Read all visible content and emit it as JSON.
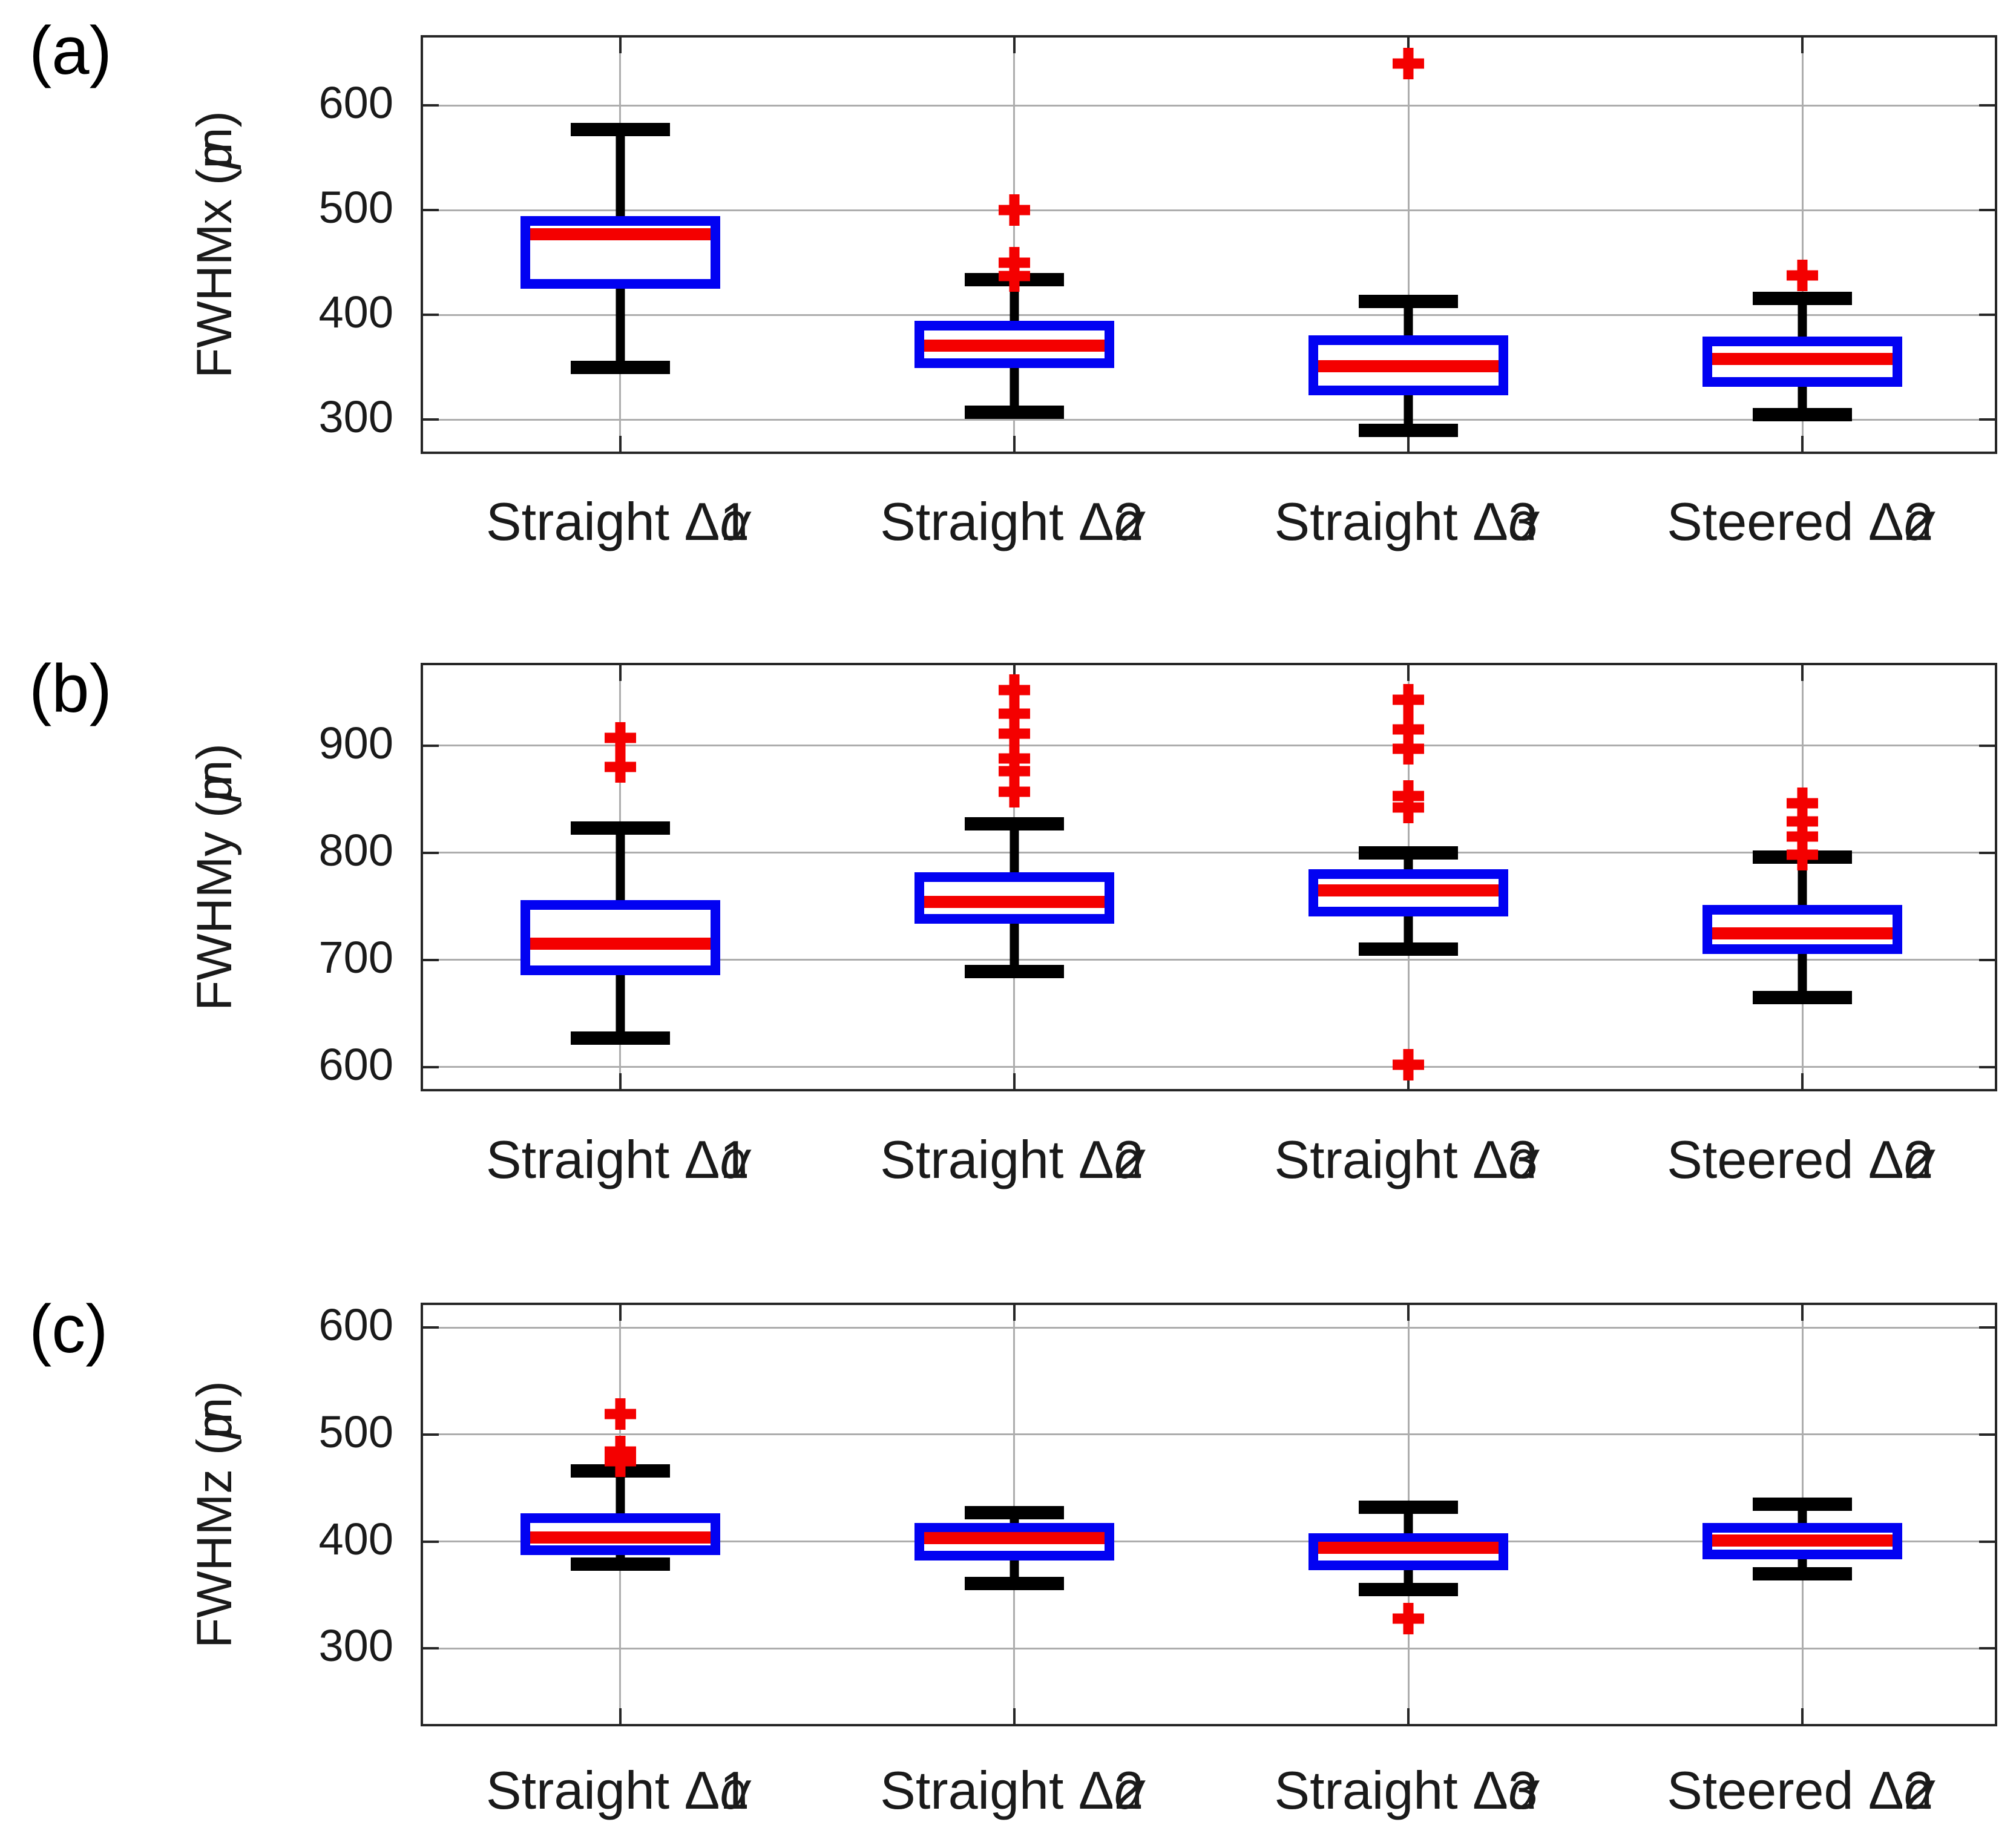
{
  "colors": {
    "box_edge": "#0202F2",
    "median": "#F40000",
    "whisker": "#000000",
    "outlier_marker": "#F40000",
    "gridline": "#ADADAD",
    "axis_border": "#262626"
  },
  "outlier_marker_symbol": "+",
  "chart_data": [
    {
      "type": "box",
      "panel": "(a)",
      "ylabel": "FWHMx (μm)",
      "ylim": [
        265,
        665
      ],
      "yticks": [
        300,
        400,
        500,
        600
      ],
      "grid": "on",
      "categories": [
        "Straight Δα1",
        "Straight Δα2",
        "Straight Δα3",
        "Steered Δα2"
      ],
      "series": [
        {
          "category": "Straight Δα1",
          "whisker_low": 350,
          "q1": 430,
          "median": 477,
          "q3": 490,
          "whisker_high": 577,
          "outliers": []
        },
        {
          "category": "Straight Δα2",
          "whisker_low": 307,
          "q1": 354,
          "median": 371,
          "q3": 390,
          "whisker_high": 434,
          "outliers": [
            500,
            450,
            437
          ]
        },
        {
          "category": "Straight Δα3",
          "whisker_low": 290,
          "q1": 328,
          "median": 351,
          "q3": 376,
          "whisker_high": 413,
          "outliers": [
            640
          ]
        },
        {
          "category": "Steered Δα2",
          "whisker_low": 305,
          "q1": 336,
          "median": 358,
          "q3": 375,
          "whisker_high": 416,
          "outliers": [
            438
          ]
        }
      ]
    },
    {
      "type": "box",
      "panel": "(b)",
      "ylabel": "FWHMy (μm)",
      "ylim": [
        575,
        975
      ],
      "yticks": [
        600,
        700,
        800,
        900
      ],
      "grid": "on",
      "categories": [
        "Straight Δα1",
        "Straight Δα2",
        "Straight Δα3",
        "Steered Δα2"
      ],
      "series": [
        {
          "category": "Straight Δα1",
          "whisker_low": 627,
          "q1": 690,
          "median": 715,
          "q3": 751,
          "whisker_high": 823,
          "outliers": [
            907,
            880
          ]
        },
        {
          "category": "Straight Δα2",
          "whisker_low": 689,
          "q1": 738,
          "median": 754,
          "q3": 777,
          "whisker_high": 827,
          "outliers": [
            952,
            930,
            911,
            888,
            876,
            857
          ]
        },
        {
          "category": "Straight Δα3",
          "whisker_low": 710,
          "q1": 745,
          "median": 765,
          "q3": 780,
          "whisker_high": 800,
          "outliers": [
            943,
            915,
            897,
            853,
            842,
            602
          ]
        },
        {
          "category": "Steered Δα2",
          "whisker_low": 665,
          "q1": 710,
          "median": 725,
          "q3": 747,
          "whisker_high": 796,
          "outliers": [
            846,
            829,
            815,
            798
          ]
        }
      ]
    },
    {
      "type": "box",
      "panel": "(c)",
      "ylabel": "FWHMz (μm)",
      "ylim": [
        225,
        621
      ],
      "yticks": [
        300,
        400,
        500,
        600
      ],
      "grid": "on",
      "categories": [
        "Straight Δα1",
        "Straight Δα2",
        "Straight Δα3",
        "Steered Δα2"
      ],
      "series": [
        {
          "category": "Straight Δα1",
          "whisker_low": 379,
          "q1": 392,
          "median": 404,
          "q3": 422,
          "whisker_high": 466,
          "outliers": [
            519,
            484,
            475
          ]
        },
        {
          "category": "Straight Δα2",
          "whisker_low": 361,
          "q1": 387,
          "median": 403,
          "q3": 413,
          "whisker_high": 427,
          "outliers": []
        },
        {
          "category": "Straight Δα3",
          "whisker_low": 355,
          "q1": 378,
          "median": 394,
          "q3": 403,
          "whisker_high": 432,
          "outliers": [
            328
          ]
        },
        {
          "category": "Steered Δα2",
          "whisker_low": 370,
          "q1": 388,
          "median": 401,
          "q3": 413,
          "whisker_high": 435,
          "outliers": []
        }
      ]
    }
  ]
}
